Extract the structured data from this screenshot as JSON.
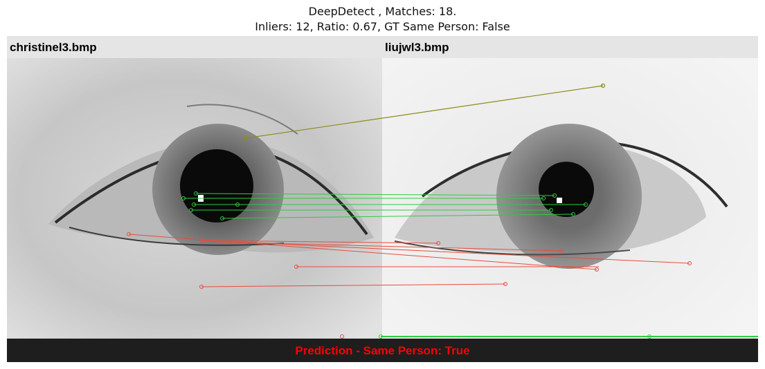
{
  "title": {
    "line1": "DeepDetect , Matches: 18.",
    "line2": "Inliers: 12, Ratio: 0.67, GT Same Person: False"
  },
  "left_image": {
    "filename": "christinel3.bmp"
  },
  "right_image": {
    "filename": "liujwl3.bmp"
  },
  "prediction": {
    "text": "Prediction - Same Person: True",
    "color": "#ff0000"
  },
  "colors": {
    "inlier_match": "#2ecc40",
    "outlier_match": "#e74c3c",
    "stray_match": "#8a8a1a",
    "header_bg": "#e5e5e5",
    "footer_bg": "#1e1e1e"
  }
}
